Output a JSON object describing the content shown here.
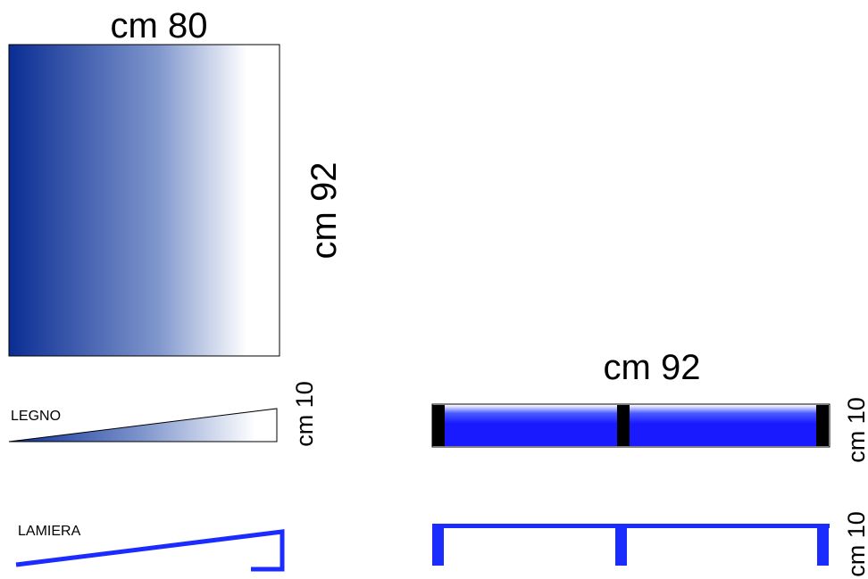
{
  "top_panel": {
    "width_label": "cm 80",
    "height_label": "cm 92",
    "gradient_colors": [
      "#0a2d94",
      "#ffffff"
    ]
  },
  "legno": {
    "label": "LEGNO",
    "height_label": "cm 10"
  },
  "lamiera": {
    "label": "LAMIERA",
    "color": "#1a2cff"
  },
  "bar_assembly": {
    "width_label": "cm 92",
    "height_label": "cm 10",
    "bar_color": "#1a1aff",
    "block_color": "#000000"
  },
  "channel_assembly": {
    "height_label": "cm 10",
    "color": "#1a2cff"
  }
}
